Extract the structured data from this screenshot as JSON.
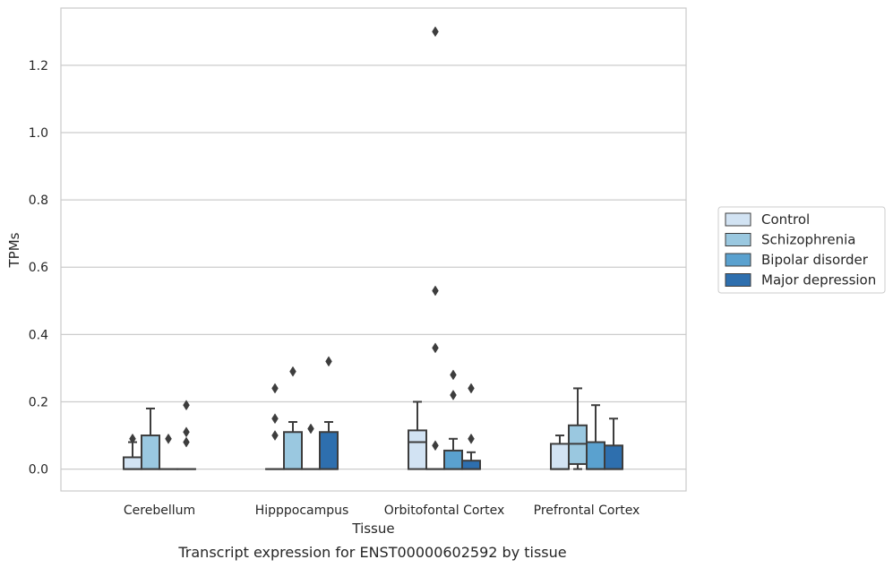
{
  "caption": "Transcript expression for ENST00000602592 by tissue",
  "chart_data": {
    "type": "box",
    "xlabel": "Tissue",
    "ylabel": "TPMs",
    "ylim": [
      -0.065,
      1.37
    ],
    "yticks": [
      0.0,
      0.2,
      0.4,
      0.6,
      0.8,
      1.0,
      1.2
    ],
    "ytick_labels": [
      "0.0",
      "0.2",
      "0.4",
      "0.6",
      "0.8",
      "1.0",
      "1.2"
    ],
    "grid": "horizontal",
    "legend_position": "right",
    "categories": [
      "Cerebellum",
      "Hipppocampus",
      "Orbitofontal Cortex",
      "Prefrontal Cortex"
    ],
    "series": [
      {
        "name": "Control",
        "color": "#d2e3f3",
        "boxes": [
          {
            "q1": 0.0,
            "median": 0.0,
            "q3": 0.035,
            "whislo": 0.0,
            "whishi": 0.08,
            "fliers": [
              0.09
            ]
          },
          {
            "q1": 0.0,
            "median": 0.0,
            "q3": 0.0,
            "whislo": 0.0,
            "whishi": 0.0,
            "fliers": [
              0.24,
              0.15,
              0.1
            ]
          },
          {
            "q1": 0.0,
            "median": 0.08,
            "q3": 0.115,
            "whislo": 0.0,
            "whishi": 0.2,
            "fliers": []
          },
          {
            "q1": 0.0,
            "median": 0.0,
            "q3": 0.075,
            "whislo": 0.0,
            "whishi": 0.1,
            "fliers": []
          }
        ]
      },
      {
        "name": "Schizophrenia",
        "color": "#9ac8e0",
        "boxes": [
          {
            "q1": 0.0,
            "median": 0.0,
            "q3": 0.1,
            "whislo": 0.0,
            "whishi": 0.18,
            "fliers": []
          },
          {
            "q1": 0.0,
            "median": 0.0,
            "q3": 0.11,
            "whislo": 0.0,
            "whishi": 0.14,
            "fliers": [
              0.29
            ]
          },
          {
            "q1": 0.0,
            "median": 0.0,
            "q3": 0.0,
            "whislo": 0.0,
            "whishi": 0.0,
            "fliers": [
              1.3,
              0.53,
              0.36,
              0.07
            ]
          },
          {
            "q1": 0.015,
            "median": 0.075,
            "q3": 0.13,
            "whislo": 0.0,
            "whishi": 0.24,
            "fliers": []
          }
        ]
      },
      {
        "name": "Bipolar disorder",
        "color": "#5aa1cf",
        "boxes": [
          {
            "q1": 0.0,
            "median": 0.0,
            "q3": 0.0,
            "whislo": 0.0,
            "whishi": 0.0,
            "fliers": [
              0.09
            ]
          },
          {
            "q1": 0.0,
            "median": 0.0,
            "q3": 0.0,
            "whislo": 0.0,
            "whishi": 0.0,
            "fliers": [
              0.12
            ]
          },
          {
            "q1": 0.0,
            "median": 0.0,
            "q3": 0.055,
            "whislo": 0.0,
            "whishi": 0.09,
            "fliers": [
              0.28,
              0.22
            ]
          },
          {
            "q1": 0.0,
            "median": 0.0,
            "q3": 0.08,
            "whislo": 0.0,
            "whishi": 0.19,
            "fliers": []
          }
        ]
      },
      {
        "name": "Major depression",
        "color": "#2e6fae",
        "boxes": [
          {
            "q1": 0.0,
            "median": 0.0,
            "q3": 0.0,
            "whislo": 0.0,
            "whishi": 0.0,
            "fliers": [
              0.19,
              0.11,
              0.08
            ]
          },
          {
            "q1": 0.0,
            "median": 0.0,
            "q3": 0.11,
            "whislo": 0.0,
            "whishi": 0.14,
            "fliers": [
              0.32
            ]
          },
          {
            "q1": 0.0,
            "median": 0.0,
            "q3": 0.025,
            "whislo": 0.0,
            "whishi": 0.05,
            "fliers": [
              0.24,
              0.09
            ]
          },
          {
            "q1": 0.0,
            "median": 0.0,
            "q3": 0.07,
            "whislo": 0.0,
            "whishi": 0.15,
            "fliers": []
          }
        ]
      }
    ]
  }
}
